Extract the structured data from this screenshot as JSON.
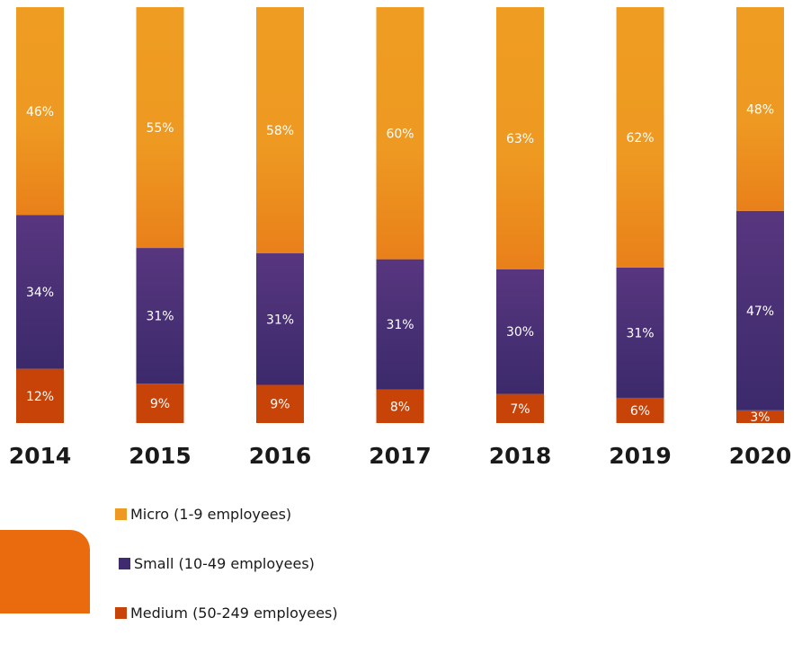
{
  "chart_data": {
    "type": "bar",
    "stacked": true,
    "categories": [
      "2014",
      "2015",
      "2016",
      "2017",
      "2018",
      "2019",
      "2020"
    ],
    "series": [
      {
        "name": "Medium (50-249 employees)",
        "values": [
          12,
          9,
          9,
          8,
          7,
          6,
          3
        ],
        "labels": [
          "12%",
          "9%",
          "9%",
          "8%",
          "7%",
          "6%",
          "3%"
        ],
        "color": "#c84308"
      },
      {
        "name": "Small (10-49 employees)",
        "values": [
          34,
          31,
          31,
          31,
          30,
          31,
          47
        ],
        "labels": [
          "34%",
          "31%",
          "31%",
          "31%",
          "30%",
          "31%",
          "47%"
        ],
        "color": "#4a2f7d"
      },
      {
        "name": "Micro (1-9 employees)",
        "values": [
          46,
          55,
          58,
          60,
          63,
          62,
          48
        ],
        "labels": [
          "46%",
          "55%",
          "58%",
          "60%",
          "63%",
          "62%",
          "48%"
        ],
        "color": "#ee9a22"
      }
    ],
    "legend": [
      "Micro (1-9 employees)",
      "Small (10-49 employees)",
      "Medium (50-249 employees)"
    ],
    "legend_position": "bottom-left",
    "ylim": [
      0,
      100
    ],
    "grid": false
  },
  "colors": {
    "micro_gradient": [
      "#ef9c22",
      "#ea7e1a"
    ],
    "small_gradient": [
      "#57357f",
      "#3a2a6b"
    ],
    "medium": "#c84308",
    "decoration": "#ea6a0e"
  }
}
